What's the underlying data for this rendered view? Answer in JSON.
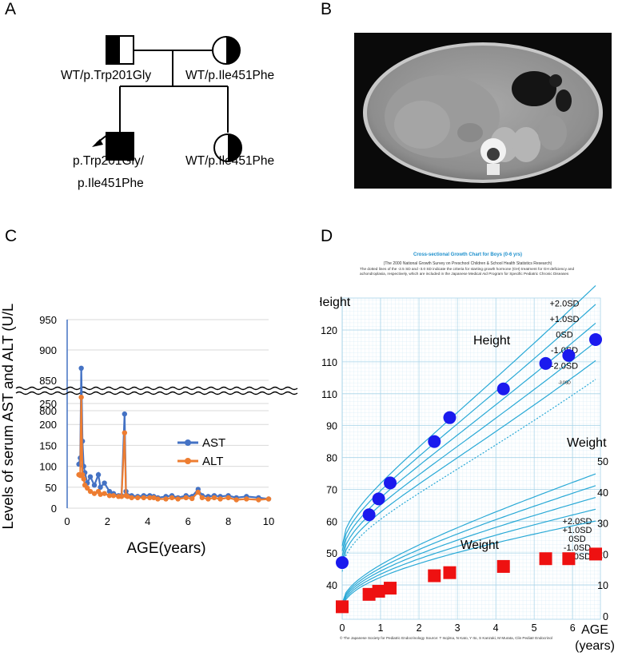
{
  "panels": {
    "a": "A",
    "b": "B",
    "c": "C",
    "d": "D"
  },
  "pedigree": {
    "father": "WT/p.Trp201Gly",
    "mother": "WT/p.Ile451Phe",
    "proband_line1": "p.Trp201Gly/",
    "proband_line2": "p.Ile451Phe",
    "sister": "WT/p.Ile451Phe"
  },
  "colors": {
    "ast": "#4472c4",
    "alt": "#ed7d31",
    "growth_curve": "#29a9d6",
    "height_marker": "#1a1aee",
    "weight_marker": "#ee1111"
  },
  "chart_data": [
    {
      "type": "line",
      "xlabel": "AGE(years)",
      "ylabel": "Levels of serum AST and ALT (U/L)",
      "xlim": [
        0,
        10
      ],
      "x_ticks": [
        "0",
        "2",
        "4",
        "6",
        "8",
        "10"
      ],
      "y_ticks_lower": [
        "0",
        "50",
        "100",
        "150",
        "200",
        "250"
      ],
      "y_ticks_upper": [
        "800",
        "850",
        "900",
        "950"
      ],
      "axis_break": "between 250 and 800",
      "legend_position": "right",
      "series": [
        {
          "name": "AST",
          "x": [
            0.58,
            0.65,
            0.7,
            0.76,
            0.82,
            0.88,
            1.0,
            1.15,
            1.35,
            1.55,
            1.65,
            1.85,
            2.1,
            2.3,
            2.55,
            2.7,
            2.85,
            2.92,
            3.0,
            3.2,
            3.5,
            3.8,
            4.1,
            4.3,
            4.5,
            4.9,
            5.2,
            5.5,
            5.9,
            6.2,
            6.5,
            6.7,
            7.0,
            7.3,
            7.6,
            8.0,
            8.4,
            8.9,
            9.5,
            10.0
          ],
          "y": [
            105,
            120,
            870,
            160,
            100,
            85,
            60,
            75,
            55,
            80,
            50,
            60,
            40,
            35,
            30,
            30,
            225,
            40,
            30,
            30,
            28,
            30,
            30,
            28,
            25,
            28,
            30,
            25,
            30,
            28,
            45,
            30,
            28,
            30,
            28,
            30,
            25,
            28,
            25,
            22
          ]
        },
        {
          "name": "ALT",
          "x": [
            0.58,
            0.65,
            0.7,
            0.76,
            0.82,
            0.88,
            1.0,
            1.15,
            1.35,
            1.55,
            1.65,
            1.85,
            2.1,
            2.3,
            2.55,
            2.7,
            2.85,
            2.92,
            3.0,
            3.2,
            3.5,
            3.8,
            4.1,
            4.3,
            4.5,
            4.9,
            5.2,
            5.5,
            5.9,
            6.2,
            6.5,
            6.7,
            7.0,
            7.3,
            7.6,
            8.0,
            8.4,
            8.9,
            9.5,
            10.0
          ],
          "y": [
            80,
            78,
            265,
            80,
            70,
            55,
            48,
            40,
            35,
            40,
            33,
            35,
            30,
            30,
            28,
            28,
            180,
            30,
            28,
            25,
            25,
            25,
            25,
            25,
            22,
            22,
            25,
            22,
            25,
            23,
            38,
            25,
            22,
            25,
            22,
            25,
            20,
            22,
            20,
            22
          ]
        }
      ]
    },
    {
      "type": "scatter",
      "title": "Cross-sectional Growth Chart for Boys (0-6 yrs)",
      "subtitle": "(The 2000 National Growth Survey on Preschool Children & School Health Statistics Research)",
      "note": "The dotted lines of the -2.5 SD and -3.0 SD indicate the criteria for starting growth hormone (GH) treatment for GH deficiency and achondroplasia, respectively, which are included in the Japanese Medical Aid Program for Specific Pediatric Chronic Diseases",
      "footer": "© The Japanese Society for Pediatric Endocrinology   Source: T Isojima, N Kato, Y Ito, S Kanzaki, M Murata, Clin Pediatr Endocrinol",
      "height_axis_label": "Height",
      "weight_axis_label": "Weight",
      "age_axis_label_1": "AGE",
      "age_axis_label_2": "(years)",
      "height_curves_label": "Height",
      "weight_curves_label": "Weight",
      "height_sd_labels": [
        "+2.0SD",
        "+1.0SD",
        "0SD",
        "-1.0SD",
        "-2.0SD",
        "-3.0SD"
      ],
      "weight_sd_labels": [
        "+2.0SD",
        "+1.0SD",
        "0SD",
        "-1.0SD",
        "-2.0SD"
      ],
      "height_ticks": [
        "40",
        "50",
        "60",
        "70",
        "80",
        "90",
        "110",
        "110",
        "120"
      ],
      "weight_ticks": [
        "0",
        "10",
        "20",
        "30",
        "40",
        "50"
      ],
      "age_ticks": [
        "0",
        "1",
        "2",
        "3",
        "4",
        "5",
        "6"
      ],
      "xlim": [
        0,
        6.6
      ],
      "height_points": {
        "age": [
          0.0,
          0.7,
          0.95,
          1.25,
          2.4,
          2.8,
          4.2,
          5.3,
          5.9,
          6.6
        ],
        "height_cm": [
          47,
          62,
          67,
          72,
          85,
          92.5,
          101.5,
          109.5,
          112,
          117
        ]
      },
      "weight_points": {
        "age": [
          0.0,
          0.7,
          0.95,
          1.25,
          2.4,
          2.8,
          4.2,
          5.3,
          5.9,
          6.6
        ],
        "weight_kg": [
          3,
          7,
          8,
          9,
          13,
          14,
          16,
          18.5,
          18.5,
          20
        ]
      }
    }
  ]
}
